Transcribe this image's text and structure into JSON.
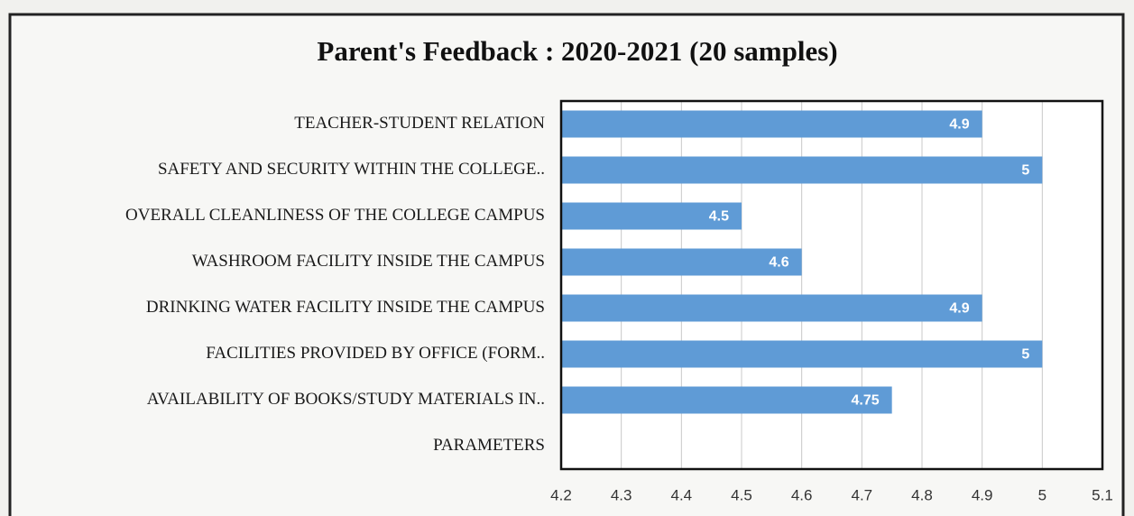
{
  "chart_data": {
    "type": "hbar",
    "title": "Parent's Feedback : 2020-2021 (20 samples)",
    "categories": [
      "TEACHER-STUDENT RELATION",
      "SAFETY AND SECURITY WITHIN THE COLLEGE..",
      "OVERALL CLEANLINESS OF THE COLLEGE CAMPUS",
      "WASHROOM FACILITY INSIDE THE CAMPUS",
      "DRINKING WATER FACILITY INSIDE THE CAMPUS",
      "FACILITIES PROVIDED BY OFFICE (FORM..",
      "AVAILABILITY OF BOOKS/STUDY MATERIALS IN..",
      "PARAMETERS"
    ],
    "values": [
      4.9,
      5,
      4.5,
      4.6,
      4.9,
      5,
      4.75,
      null
    ],
    "color": "#5f9bd6",
    "xlim": [
      4.2,
      5.1
    ],
    "xticks": [
      4.2,
      4.3,
      4.4,
      4.5,
      4.6,
      4.7,
      4.8,
      4.9,
      5,
      5.1
    ],
    "grid": true
  }
}
